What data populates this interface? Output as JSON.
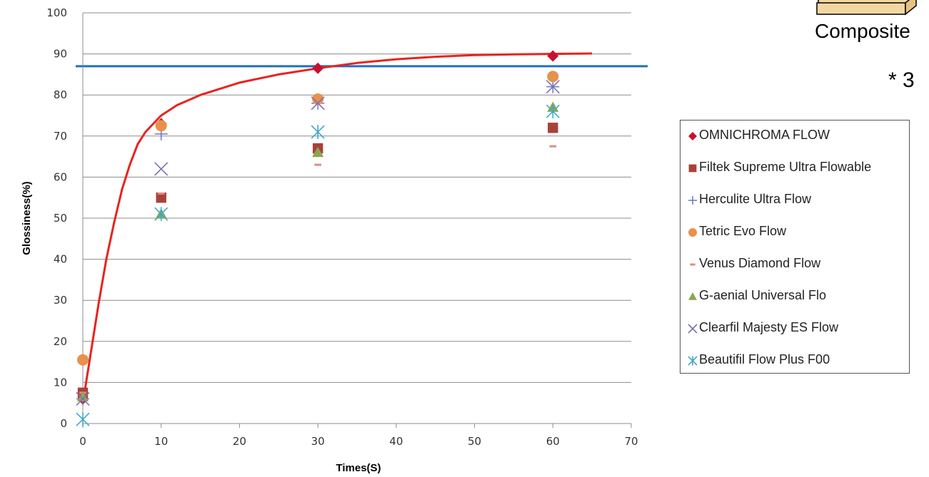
{
  "chart_data": {
    "type": "scatter",
    "title": "",
    "xlabel": "Times(S)",
    "ylabel": "Glossiness(%)",
    "xlim": [
      0,
      70
    ],
    "ylim": [
      0,
      100
    ],
    "x_ticks": [
      "0",
      "10",
      "20",
      "30",
      "40",
      "50",
      "60",
      "70"
    ],
    "y_ticks": [
      "0",
      "10",
      "20",
      "30",
      "40",
      "50",
      "60",
      "70",
      "80",
      "90",
      "100"
    ],
    "grid": "horizontal",
    "legend_position": "right",
    "reference_line": {
      "y": 87,
      "color": "#1f6fc0"
    },
    "trend_curve": {
      "color": "#e8231f",
      "x": [
        0,
        1,
        2,
        3,
        4,
        5,
        6,
        7,
        8,
        9,
        10,
        12,
        15,
        20,
        25,
        30,
        35,
        40,
        45,
        50,
        55,
        60,
        65
      ],
      "y": [
        5,
        17,
        29,
        40,
        49,
        57,
        63,
        68,
        71,
        73,
        75,
        77.5,
        80,
        83,
        85,
        86.5,
        87.8,
        88.7,
        89.3,
        89.7,
        89.9,
        90,
        90.1
      ]
    },
    "series": [
      {
        "name": "OMNICHROMA FLOW",
        "marker": "diamond",
        "color": "#c8102e",
        "x": [
          0,
          10,
          30,
          60
        ],
        "y": [
          6,
          73,
          86.5,
          89.5
        ]
      },
      {
        "name": "Filtek Supreme Ultra Flowable",
        "marker": "square",
        "color": "#a9413a",
        "x": [
          0,
          10,
          30,
          60
        ],
        "y": [
          7.5,
          55,
          67,
          72
        ]
      },
      {
        "name": "Herculite Ultra Flow",
        "marker": "plus",
        "color": "#6a78b8",
        "x": [
          0,
          10,
          30,
          60
        ],
        "y": [
          6,
          70.5,
          78,
          82
        ]
      },
      {
        "name": "Tetric Evo Flow",
        "marker": "circle",
        "color": "#e8914b",
        "x": [
          0,
          10,
          30,
          60
        ],
        "y": [
          15.5,
          72.5,
          79,
          84.5
        ]
      },
      {
        "name": "Venus Diamond Flow",
        "marker": "dash",
        "color": "#e38a8a",
        "x": [
          0,
          10,
          30,
          60
        ],
        "y": [
          7.5,
          56,
          63,
          67.5
        ]
      },
      {
        "name": "G-aenial Universal Flo",
        "marker": "triangle",
        "color": "#8aa752",
        "x": [
          0,
          10,
          30,
          60
        ],
        "y": [
          6.5,
          51,
          66,
          77
        ]
      },
      {
        "name": "Clearfil Majesty ES Flow",
        "marker": "x",
        "color": "#7f6fb5",
        "x": [
          0,
          10,
          30,
          60
        ],
        "y": [
          6,
          62,
          78,
          82
        ]
      },
      {
        "name": "Beautifil Flow Plus F00",
        "marker": "star",
        "color": "#3fa9c9",
        "x": [
          0,
          10,
          30,
          60
        ],
        "y": [
          1,
          51,
          71,
          76
        ]
      }
    ]
  },
  "annotations": {
    "composite_label": "Composite",
    "multiplier_label": "* 3"
  }
}
